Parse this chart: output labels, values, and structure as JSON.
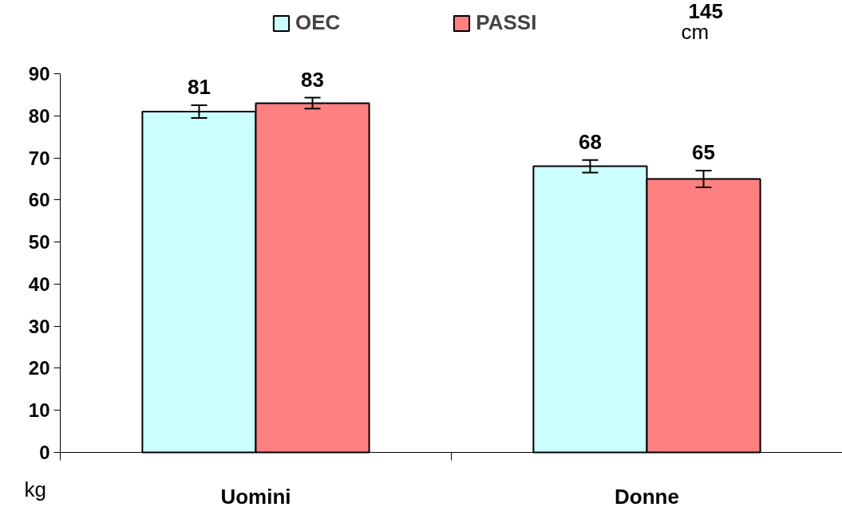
{
  "chart_data": {
    "type": "bar",
    "categories": [
      "Uomini",
      "Donne"
    ],
    "series": [
      {
        "name": "OEC",
        "color": "#ccffff",
        "values": [
          81,
          68
        ],
        "errors": [
          1.5,
          1.5
        ]
      },
      {
        "name": "PASSI",
        "color": "#ff8080",
        "values": [
          83,
          65
        ],
        "errors": [
          1.3,
          2
        ]
      }
    ],
    "ylim": [
      0,
      90
    ],
    "yticks": [
      0,
      10,
      20,
      30,
      40,
      50,
      60,
      70,
      80,
      90
    ],
    "data_labels": true,
    "legend": "top",
    "grid": false,
    "annotations": [
      "kg",
      "145",
      "cm"
    ]
  }
}
